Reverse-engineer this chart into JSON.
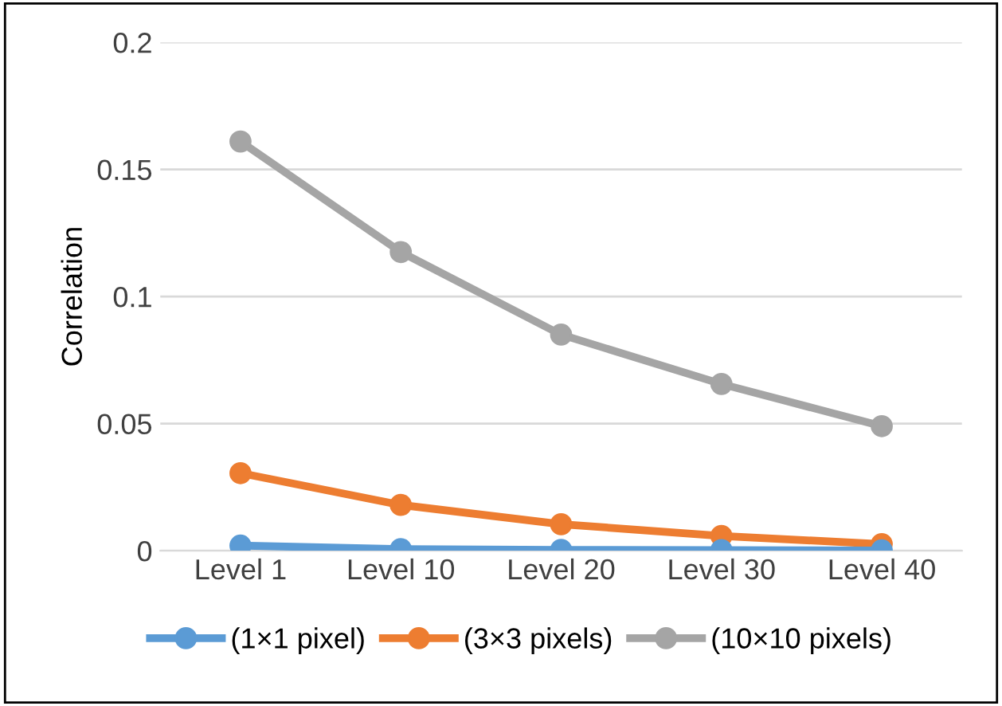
{
  "chart_data": {
    "type": "line",
    "ylabel": "Correlation",
    "categories": [
      "Level 1",
      "Level 10",
      "Level 20",
      "Level 30",
      "Level 40"
    ],
    "series": [
      {
        "name": "(1×1 pixel)",
        "color": "#5b9bd5",
        "values": [
          0.002,
          0.0006,
          0.0003,
          0.0002,
          0.0001
        ]
      },
      {
        "name": "(3×3 pixels)",
        "color": "#ed7d31",
        "values": [
          0.0305,
          0.018,
          0.0104,
          0.0058,
          0.0026
        ]
      },
      {
        "name": "(10×10 pixels)",
        "color": "#a5a5a5",
        "values": [
          0.161,
          0.1175,
          0.085,
          0.0656,
          0.049
        ]
      }
    ],
    "ylim": [
      0,
      0.2
    ],
    "yticks": [
      0,
      0.05,
      0.1,
      0.15,
      0.2
    ],
    "grid": "y",
    "legend": "bottom",
    "marker": "circle",
    "line_style": "solid"
  }
}
